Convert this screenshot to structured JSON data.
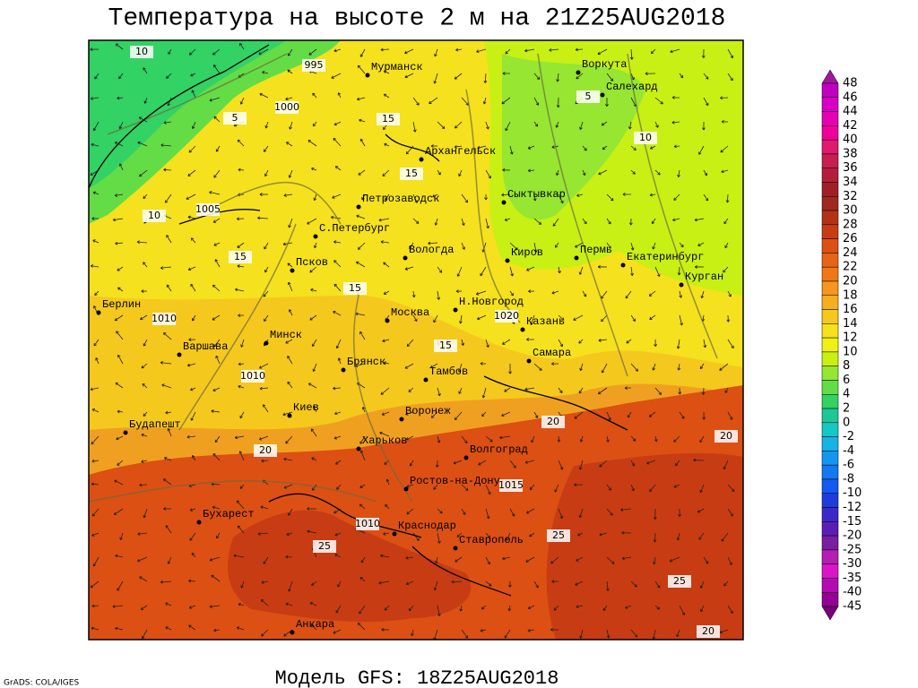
{
  "title": "Температура на высоте 2 м на 21Z25AUG2018",
  "footer": "Модель GFS: 18Z25AUG2018",
  "credit": "GrADS: COLA/IGES",
  "colorbar": {
    "labels": [
      48,
      46,
      44,
      42,
      40,
      38,
      36,
      34,
      32,
      30,
      28,
      26,
      24,
      22,
      20,
      18,
      16,
      14,
      12,
      10,
      8,
      6,
      4,
      2,
      0,
      -2,
      -4,
      -6,
      -8,
      -10,
      -12,
      -15,
      -20,
      -25,
      -30,
      -35,
      -40,
      -45
    ],
    "colors": [
      "#a0189a",
      "#c000c0",
      "#d800c8",
      "#e600b4",
      "#f0009a",
      "#e01a6e",
      "#c81e50",
      "#b41e3c",
      "#a01e28",
      "#a0281e",
      "#b43214",
      "#c83c14",
      "#dc5014",
      "#e66414",
      "#f07814",
      "#f5961e",
      "#f5af1e",
      "#f5c81e",
      "#f5e11e",
      "#f0f014",
      "#c8f014",
      "#96e632",
      "#64dc46",
      "#32d264",
      "#1ec896",
      "#14c8c8",
      "#14b4e6",
      "#1496f0",
      "#1478f0",
      "#145af0",
      "#1e3cdc",
      "#3c28c8",
      "#5a1eb4",
      "#781ea0",
      "#b41eb4",
      "#dc14c8",
      "#b40ab4",
      "#960096",
      "#780078"
    ]
  },
  "cities": [
    "Мурманск",
    "Воркута",
    "Салехард",
    "Архангельск",
    "Сыктывкар",
    "Петрозаводск",
    "С.Петербург",
    "Вологда",
    "Киров",
    "Пермь",
    "Екатеринбург",
    "Курган",
    "Псков",
    "Берлин",
    "Н.Новгород",
    "Москва",
    "Казань",
    "Минск",
    "Варшава",
    "Самара",
    "Брянск",
    "Тамбов",
    "Киев",
    "Воронеж",
    "Будапешт",
    "Харьков",
    "Волгоград",
    "Ростов-на-Дону",
    "Бухарест",
    "Краснодар",
    "Ставрополь",
    "Анкара"
  ],
  "isobar_labels": [
    "995",
    "1000",
    "1005",
    "1010",
    "1010",
    "1020",
    "1015",
    "1010"
  ],
  "isotherm_labels": [
    "10",
    "5",
    "5",
    "10",
    "10",
    "15",
    "15",
    "15",
    "15",
    "15",
    "20",
    "20",
    "20",
    "25",
    "25",
    "25",
    "20"
  ]
}
